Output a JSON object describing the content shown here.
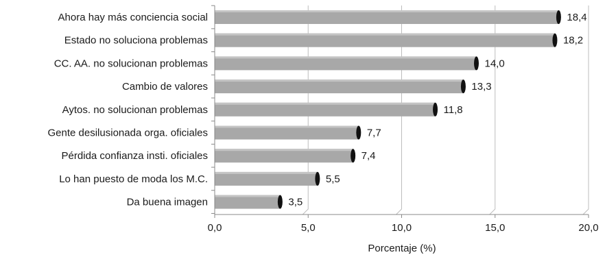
{
  "chart_data": {
    "type": "bar",
    "orientation": "horizontal",
    "categories": [
      "Ahora hay más conciencia social",
      "Estado no soluciona problemas",
      "CC. AA. no solucionan problemas",
      "Cambio de valores",
      "Aytos. no solucionan problemas",
      "Gente desilusionada orga. oficiales",
      "Pérdida confianza insti. oficiales",
      "Lo han puesto de moda los M.C.",
      "Da buena imagen"
    ],
    "values": [
      18.4,
      18.2,
      14.0,
      13.3,
      11.8,
      7.7,
      7.4,
      5.5,
      3.5
    ],
    "value_labels": [
      "18,4",
      "18,2",
      "14,0",
      "13,3",
      "11,8",
      "7,7",
      "7,4",
      "5,5",
      "3,5"
    ],
    "xlabel": "Porcentaje (%)",
    "ylabel": "",
    "xlim": [
      0,
      20
    ],
    "xticks": [
      0,
      5,
      10,
      15,
      20
    ],
    "xtick_labels": [
      "0,0",
      "5,0",
      "10,0",
      "15,0",
      "20,0"
    ],
    "grid": "vertical",
    "bar_color": "#a8a8a8",
    "bar_end_color": "#111111",
    "axis_color": "#888888"
  }
}
